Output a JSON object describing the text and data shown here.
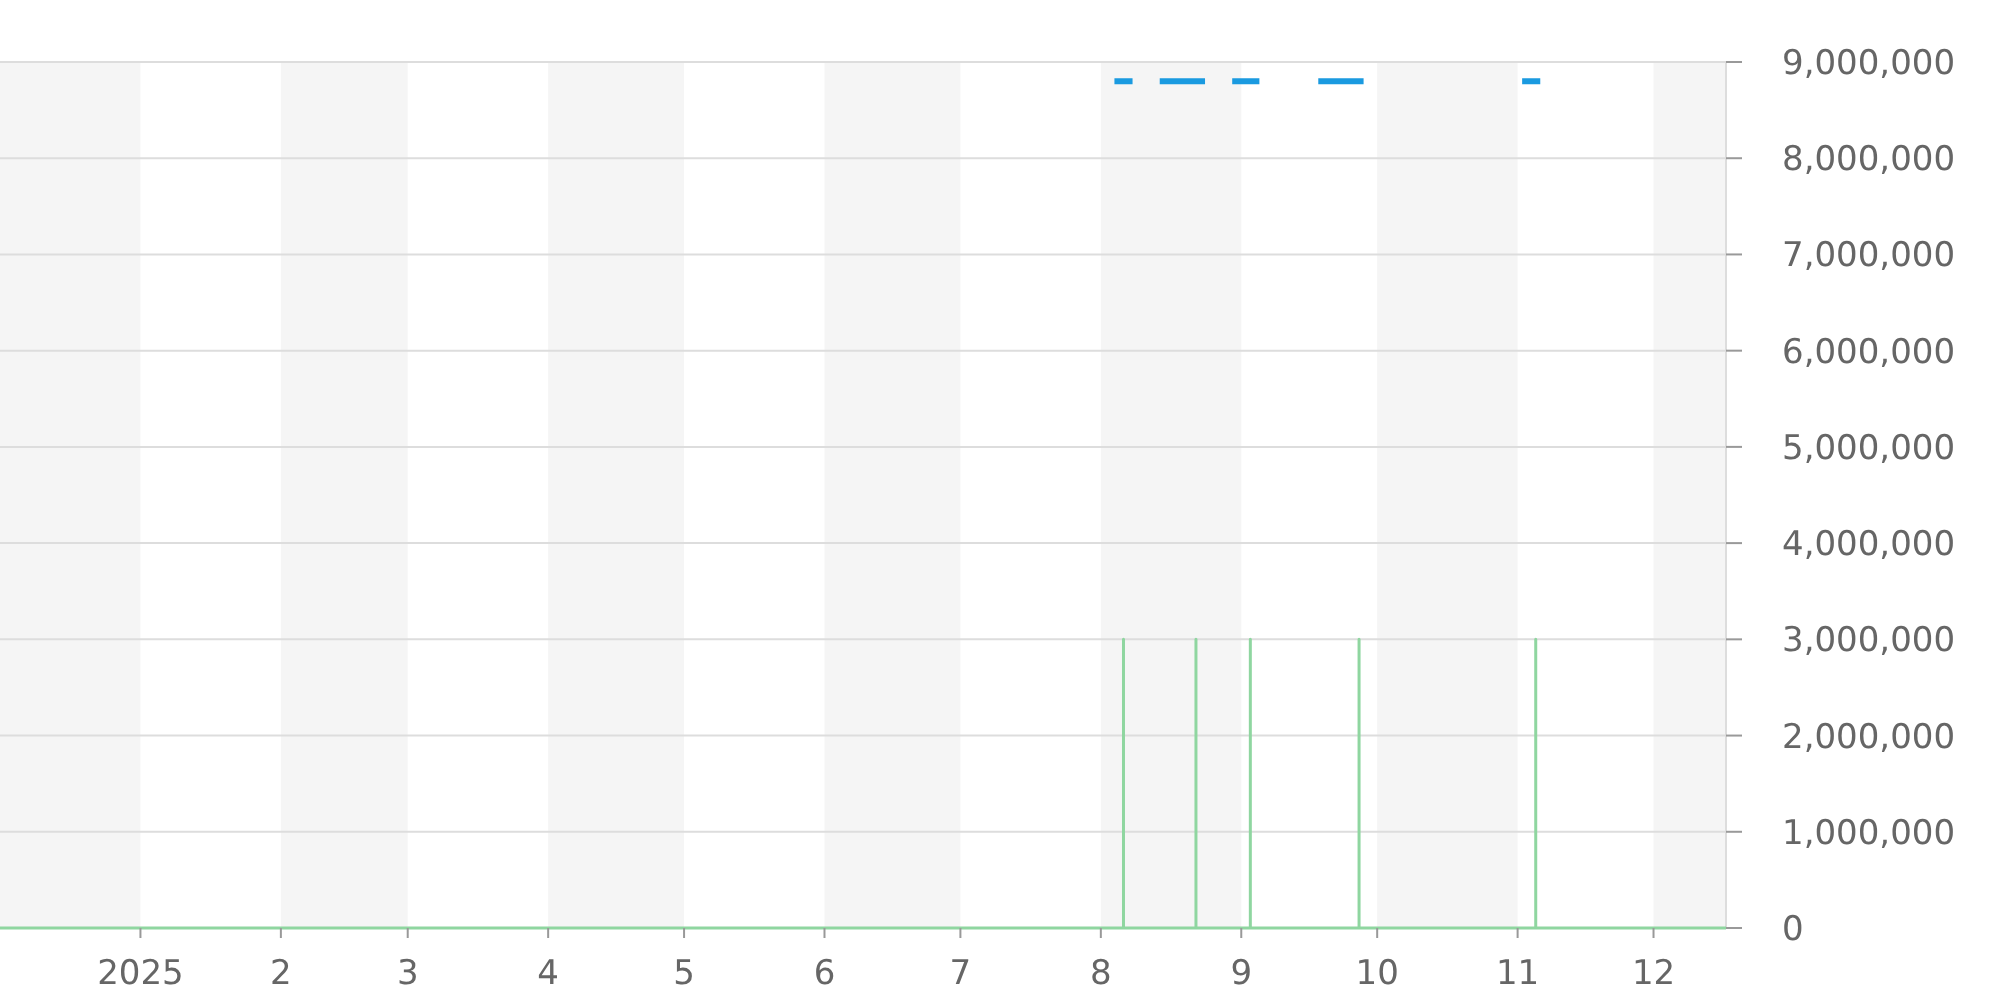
{
  "chart_data": {
    "type": "line",
    "xlim": [
      "2024-12-01",
      "2025-12-17"
    ],
    "xticks": [
      {
        "value": "2025-01-01",
        "label": "2025"
      },
      {
        "value": "2025-02-01",
        "label": "2"
      },
      {
        "value": "2025-03-01",
        "label": "3"
      },
      {
        "value": "2025-04-01",
        "label": "4"
      },
      {
        "value": "2025-05-01",
        "label": "5"
      },
      {
        "value": "2025-06-01",
        "label": "6"
      },
      {
        "value": "2025-07-01",
        "label": "7"
      },
      {
        "value": "2025-08-01",
        "label": "8"
      },
      {
        "value": "2025-09-01",
        "label": "9"
      },
      {
        "value": "2025-10-01",
        "label": "10"
      },
      {
        "value": "2025-11-01",
        "label": "11"
      },
      {
        "value": "2025-12-01",
        "label": "12"
      }
    ],
    "ylim": [
      0,
      9000000
    ],
    "yticks": [
      {
        "value": 0,
        "label": "0"
      },
      {
        "value": 1000000,
        "label": "1,000,000"
      },
      {
        "value": 2000000,
        "label": "2,000,000"
      },
      {
        "value": 3000000,
        "label": "3,000,000"
      },
      {
        "value": 4000000,
        "label": "4,000,000"
      },
      {
        "value": 5000000,
        "label": "5,000,000"
      },
      {
        "value": 6000000,
        "label": "6,000,000"
      },
      {
        "value": 7000000,
        "label": "7,000,000"
      },
      {
        "value": 8000000,
        "label": "8,000,000"
      },
      {
        "value": 9000000,
        "label": "9,000,000"
      }
    ],
    "grid": "y",
    "marker": "none",
    "bands": [
      {
        "axis": "x",
        "from": "2024-12-01",
        "to": "2025-01-01",
        "color": "#f5f5f5"
      },
      {
        "axis": "x",
        "from": "2025-02-01",
        "to": "2025-03-01",
        "color": "#f5f5f5"
      },
      {
        "axis": "x",
        "from": "2025-04-01",
        "to": "2025-05-01",
        "color": "#f5f5f5"
      },
      {
        "axis": "x",
        "from": "2025-06-01",
        "to": "2025-07-01",
        "color": "#f5f5f5"
      },
      {
        "axis": "x",
        "from": "2025-08-01",
        "to": "2025-09-01",
        "color": "#f5f5f5"
      },
      {
        "axis": "x",
        "from": "2025-10-01",
        "to": "2025-11-01",
        "color": "#f5f5f5"
      },
      {
        "axis": "x",
        "from": "2025-12-01",
        "to": "2025-12-17",
        "color": "#f5f5f5"
      }
    ],
    "series": [
      {
        "color": "#8fd6a0",
        "x": [
          "2024-12-01",
          "2025-08-06",
          "2025-08-06",
          "2025-08-06",
          "2025-08-22",
          "2025-08-22",
          "2025-08-22",
          "2025-09-03",
          "2025-09-03",
          "2025-09-03",
          "2025-09-27",
          "2025-09-27",
          "2025-09-27",
          "2025-11-05",
          "2025-11-05",
          "2025-11-05",
          "2025-12-17"
        ],
        "values": [
          0,
          0,
          3000000,
          0,
          0,
          3000000,
          0,
          0,
          3000000,
          0,
          0,
          3000000,
          0,
          0,
          3000000,
          0,
          0
        ]
      },
      {
        "color": "#1a9ae0",
        "x": [
          "2025-08-04",
          "2025-08-08",
          "2025-08-11",
          "2025-08-14",
          "2025-08-24",
          "2025-08-27",
          "2025-08-30",
          "2025-09-05",
          "2025-09-10",
          "2025-09-18",
          "2025-09-28",
          "2025-10-15",
          "2025-11-02",
          "2025-11-06"
        ],
        "values": [
          8800000,
          8800000,
          null,
          8800000,
          8800000,
          null,
          8800000,
          8800000,
          null,
          8800000,
          8800000,
          null,
          8800000,
          8800000
        ]
      }
    ]
  }
}
